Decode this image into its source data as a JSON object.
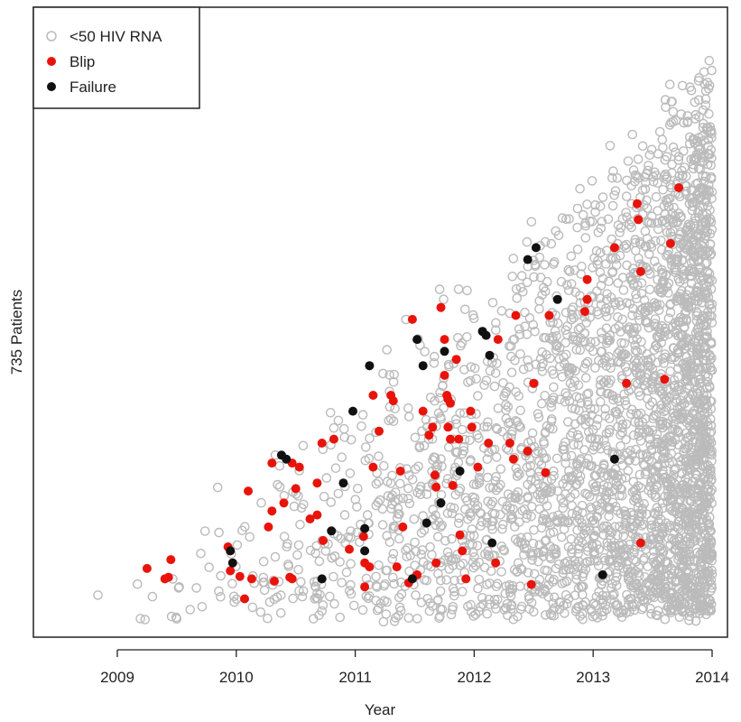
{
  "chart_data": {
    "type": "scatter",
    "title": "",
    "xlabel": "Year",
    "ylabel": "735 Patients",
    "xlim": [
      2008.2,
      2014.2
    ],
    "ylim": [
      0,
      735
    ],
    "x_ticks": [
      2009,
      2010,
      2011,
      2012,
      2013,
      2014
    ],
    "x_tick_labels": [
      "2009",
      "2010",
      "2011",
      "2012",
      "2013",
      "2014"
    ],
    "legend": {
      "placement": "top-left",
      "entries": [
        {
          "label": "<50 HIV RNA",
          "marker": "open-circle",
          "color": "#bbbbbb"
        },
        {
          "label": "Blip",
          "marker": "filled-circle",
          "color": "#e8140c"
        },
        {
          "label": "Failure",
          "marker": "filled-circle",
          "color": "#111111"
        }
      ]
    },
    "series": [
      {
        "name": "<50 HIV RNA",
        "color": "#bbbbbb",
        "marker": "open-circle",
        "description_points": "dense field of follow-up measurements filling the triangular region between patient enrollment (diagonal) and end of follow-up (2014)",
        "x_range": [
          2008.5,
          2014.0
        ],
        "approx_count": 3200
      },
      {
        "name": "Blip",
        "color": "#e8140c",
        "marker": "filled-circle",
        "points": [
          [
            2009.25,
            68
          ],
          [
            2009.4,
            55
          ],
          [
            2009.43,
            57
          ],
          [
            2009.45,
            79
          ],
          [
            2009.93,
            95
          ],
          [
            2009.95,
            65
          ],
          [
            2010.03,
            58
          ],
          [
            2010.07,
            30
          ],
          [
            2010.13,
            55
          ],
          [
            2010.1,
            165
          ],
          [
            2010.27,
            120
          ],
          [
            2010.3,
            140
          ],
          [
            2010.3,
            200
          ],
          [
            2010.32,
            52
          ],
          [
            2010.4,
            150
          ],
          [
            2010.47,
            200
          ],
          [
            2010.5,
            168
          ],
          [
            2010.53,
            195
          ],
          [
            2010.45,
            57
          ],
          [
            2010.47,
            55
          ],
          [
            2010.62,
            130
          ],
          [
            2010.68,
            135
          ],
          [
            2010.68,
            175
          ],
          [
            2010.72,
            225
          ],
          [
            2010.73,
            103
          ],
          [
            2010.82,
            230
          ],
          [
            2010.95,
            92
          ],
          [
            2011.07,
            108
          ],
          [
            2011.08,
            45
          ],
          [
            2011.08,
            75
          ],
          [
            2011.12,
            70
          ],
          [
            2011.15,
            195
          ],
          [
            2011.15,
            285
          ],
          [
            2011.2,
            240
          ],
          [
            2011.3,
            285
          ],
          [
            2011.32,
            278
          ],
          [
            2011.35,
            70
          ],
          [
            2011.38,
            190
          ],
          [
            2011.4,
            120
          ],
          [
            2011.45,
            50
          ],
          [
            2011.48,
            380
          ],
          [
            2011.52,
            60
          ],
          [
            2011.57,
            265
          ],
          [
            2011.62,
            235
          ],
          [
            2011.65,
            245
          ],
          [
            2011.67,
            185
          ],
          [
            2011.68,
            170
          ],
          [
            2011.68,
            75
          ],
          [
            2011.72,
            395
          ],
          [
            2011.75,
            355
          ],
          [
            2011.75,
            310
          ],
          [
            2011.77,
            285
          ],
          [
            2011.78,
            280
          ],
          [
            2011.78,
            245
          ],
          [
            2011.8,
            275
          ],
          [
            2011.8,
            230
          ],
          [
            2011.82,
            172
          ],
          [
            2011.85,
            330
          ],
          [
            2011.87,
            230
          ],
          [
            2011.88,
            110
          ],
          [
            2011.9,
            90
          ],
          [
            2011.93,
            55
          ],
          [
            2011.97,
            265
          ],
          [
            2011.98,
            245
          ],
          [
            2012.03,
            195
          ],
          [
            2012.07,
            365
          ],
          [
            2012.12,
            225
          ],
          [
            2012.18,
            75
          ],
          [
            2012.2,
            355
          ],
          [
            2012.3,
            225
          ],
          [
            2012.33,
            205
          ],
          [
            2012.35,
            385
          ],
          [
            2012.45,
            215
          ],
          [
            2012.48,
            48
          ],
          [
            2012.5,
            300
          ],
          [
            2012.6,
            188
          ],
          [
            2012.63,
            385
          ],
          [
            2012.93,
            390
          ],
          [
            2012.95,
            405
          ],
          [
            2012.95,
            430
          ],
          [
            2013.18,
            470
          ],
          [
            2013.28,
            300
          ],
          [
            2013.37,
            525
          ],
          [
            2013.38,
            505
          ],
          [
            2013.4,
            440
          ],
          [
            2013.4,
            100
          ],
          [
            2013.6,
            305
          ],
          [
            2013.65,
            475
          ],
          [
            2013.72,
            545
          ]
        ]
      },
      {
        "name": "Failure",
        "color": "#111111",
        "marker": "filled-circle",
        "points": [
          [
            2009.95,
            90
          ],
          [
            2009.97,
            75
          ],
          [
            2010.38,
            210
          ],
          [
            2010.42,
            205
          ],
          [
            2010.72,
            55
          ],
          [
            2010.8,
            115
          ],
          [
            2010.9,
            175
          ],
          [
            2010.98,
            265
          ],
          [
            2011.08,
            118
          ],
          [
            2011.08,
            90
          ],
          [
            2011.12,
            322
          ],
          [
            2011.48,
            55
          ],
          [
            2011.52,
            355
          ],
          [
            2011.57,
            322
          ],
          [
            2011.6,
            125
          ],
          [
            2011.72,
            150
          ],
          [
            2011.75,
            340
          ],
          [
            2011.88,
            190
          ],
          [
            2012.07,
            365
          ],
          [
            2012.1,
            360
          ],
          [
            2012.13,
            335
          ],
          [
            2012.15,
            100
          ],
          [
            2012.45,
            455
          ],
          [
            2012.52,
            470
          ],
          [
            2012.7,
            405
          ],
          [
            2013.08,
            60
          ],
          [
            2013.18,
            205
          ]
        ]
      }
    ]
  }
}
